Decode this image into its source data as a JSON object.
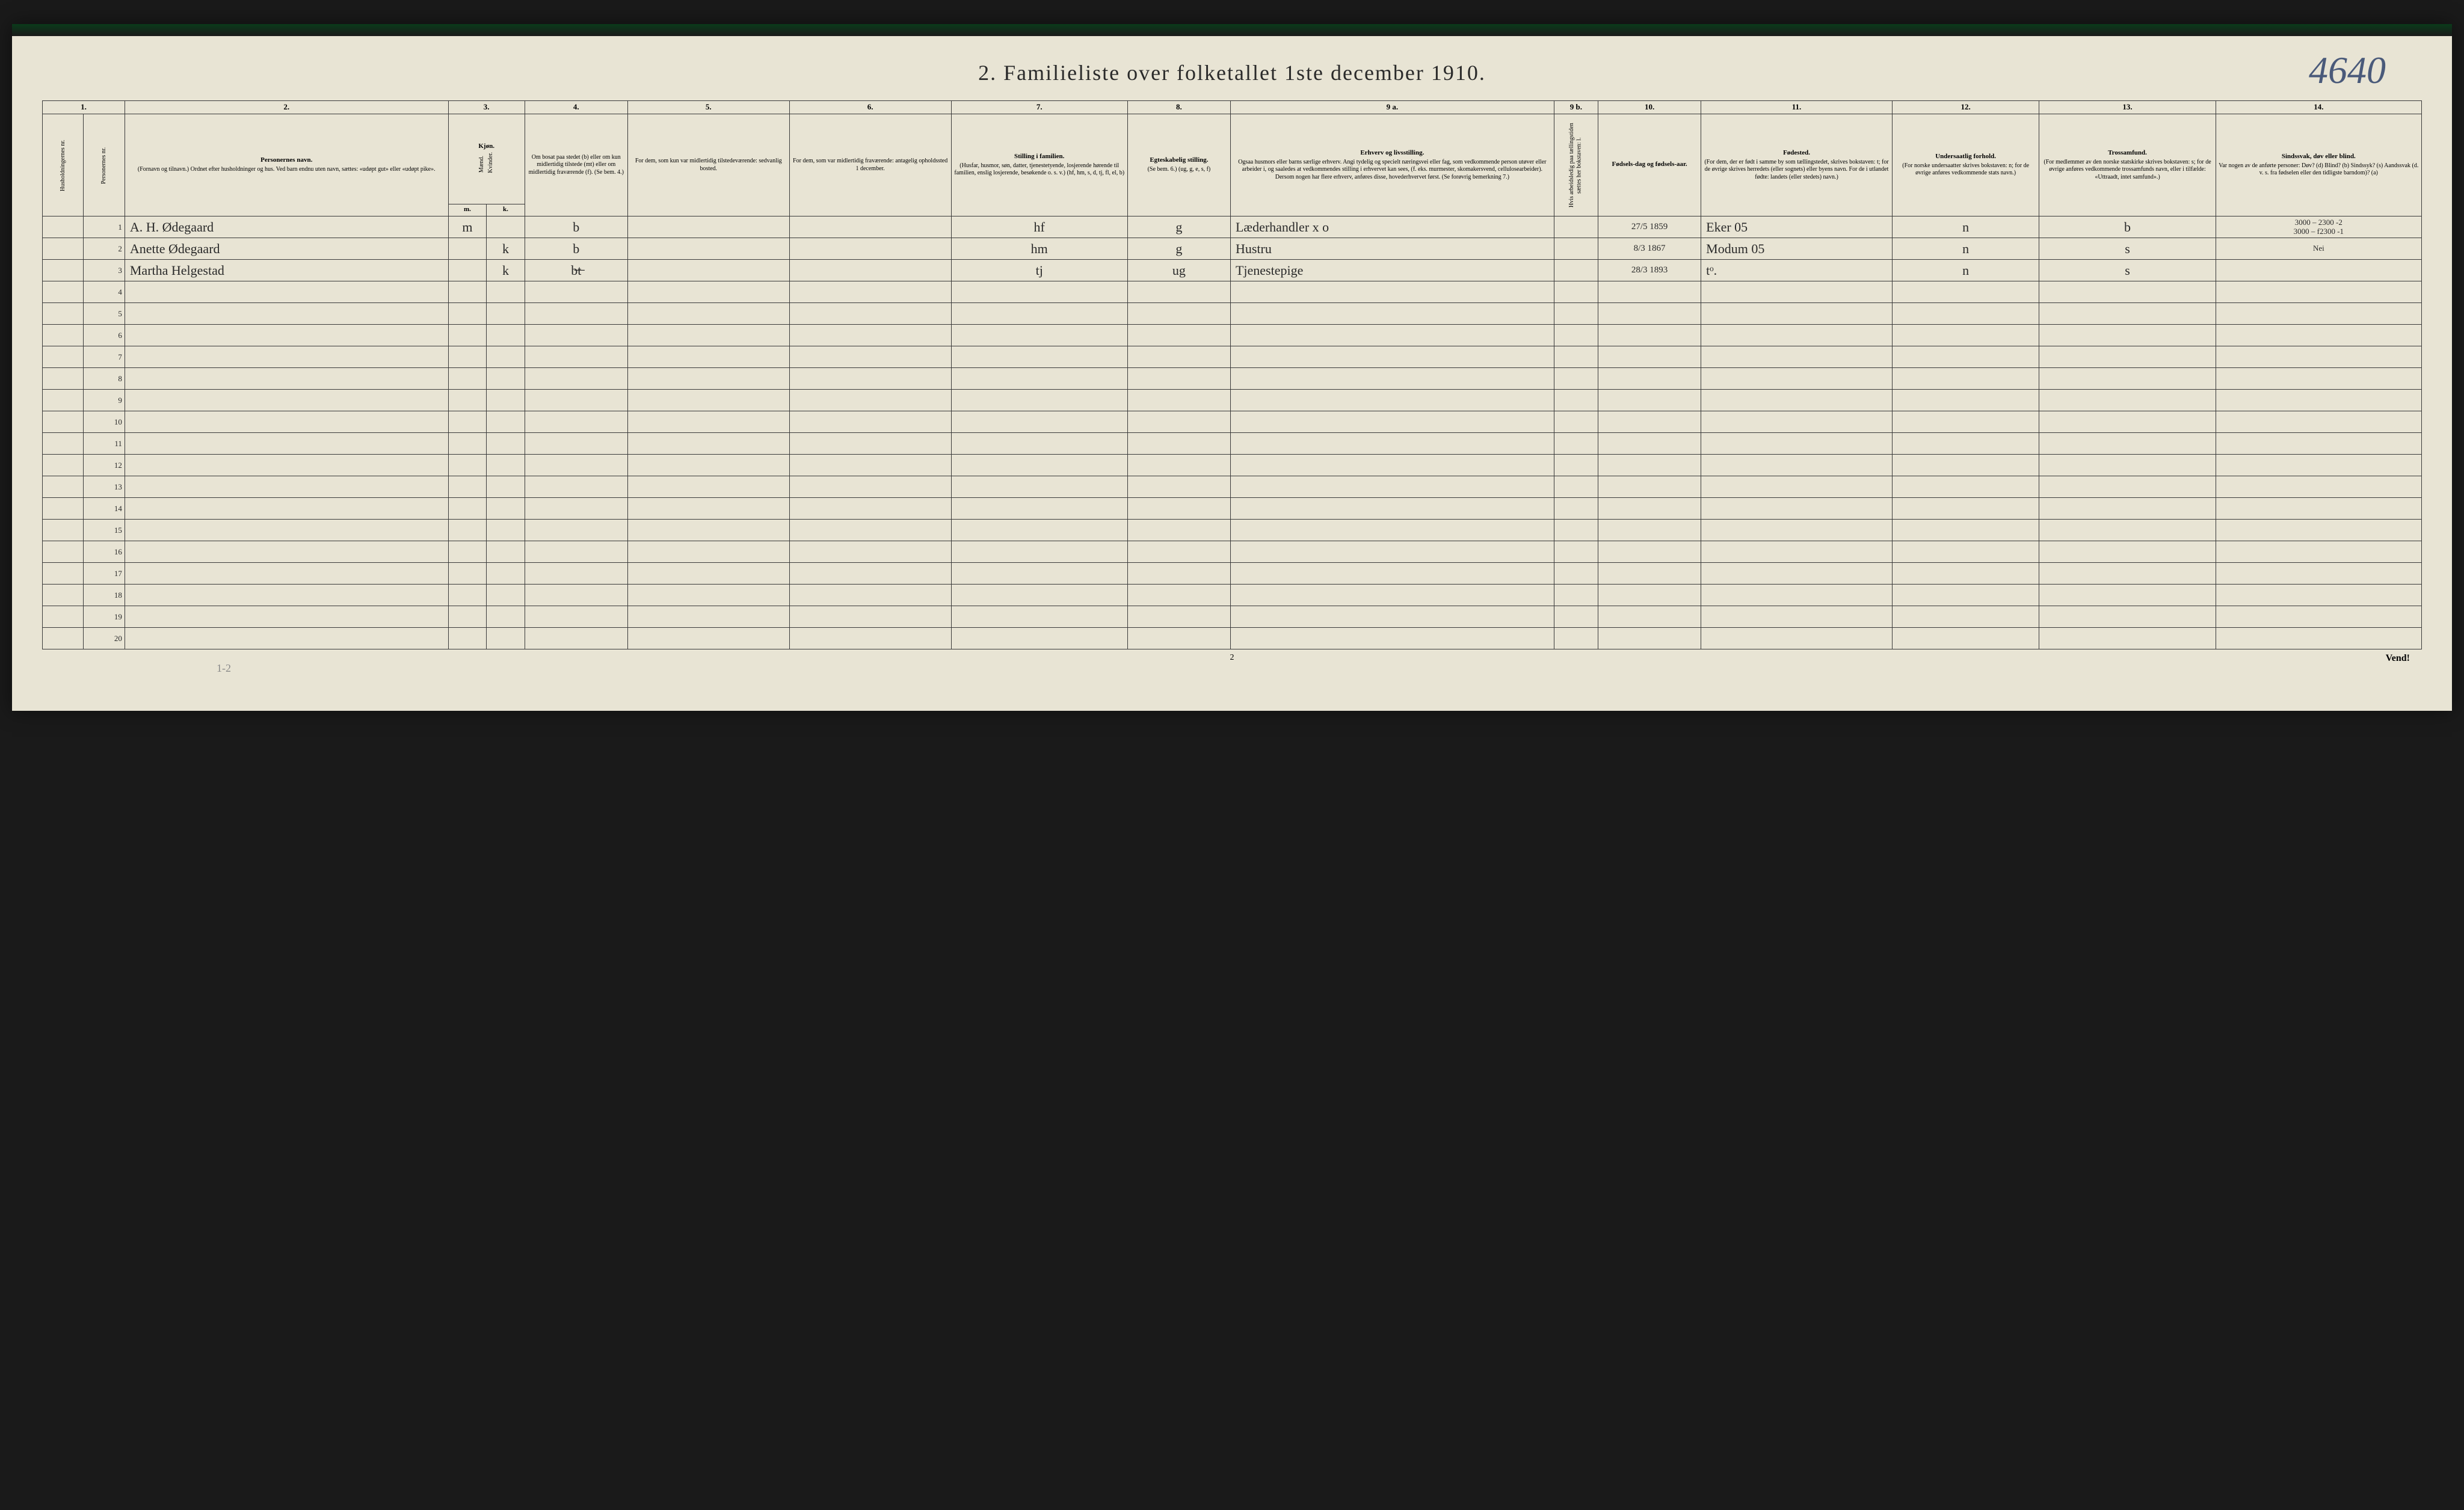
{
  "title": "2.  Familieliste over folketallet 1ste december 1910.",
  "corner_number": "4640",
  "page_number": "2",
  "vend": "Vend!",
  "pencil_below": "1-2",
  "colnums": [
    "1.",
    "2.",
    "3.",
    "4.",
    "5.",
    "6.",
    "7.",
    "8.",
    "9 a.",
    "9 b.",
    "10.",
    "11.",
    "12.",
    "13.",
    "14."
  ],
  "headers": {
    "c1a": "Husholdningernes nr.",
    "c1b": "Personernes nr.",
    "c2_bold": "Personernes navn.",
    "c2": "(Fornavn og tilnavn.)\nOrdnet efter husholdninger og hus.\nVed barn endnu uten navn, sættes: «udøpt gut» eller «udøpt pike».",
    "c3_bold": "Kjøn.",
    "c3m": "Mænd.",
    "c3k": "Kvinder.",
    "c4": "Om bosat paa stedet (b) eller om kun midlertidig tilstede (mt) eller om midlertidig fraværende (f). (Se bem. 4.)",
    "c5": "For dem, som kun var midlertidig tilstedeværende:\n\nsedvanlig bosted.",
    "c6": "For dem, som var midlertidig fraværende:\n\nantagelig opholdssted 1 december.",
    "c7_bold": "Stilling i familien.",
    "c7": "(Husfar, husmor, søn, datter, tjenestetyende, losjerende hørende til familien, enslig losjerende, besøkende o. s. v.)\n(hf, hm, s, d, tj, fl, el, b)",
    "c8_bold": "Egteskabelig stilling.",
    "c8": "(Se bem. 6.)\n(ug, g, e, s, f)",
    "c9a_bold": "Erhverv og livsstilling.",
    "c9a": "Ogsaa husmors eller barns særlige erhverv. Angi tydelig og specielt næringsvei eller fag, som vedkommende person utøver eller arbeider i, og saaledes at vedkommendes stilling i erhvervet kan sees, (f. eks. murmester, skomakersvend, cellulosearbeider). Dersom nogen har flere erhverv, anføres disse, hovederhvervet først. (Se forøvrig bemerkning 7.)",
    "c9b": "Hvis arbeidsledig paa tællingstiden sættes her bokstaven: l.",
    "c10_bold": "Fødsels-dag og fødsels-aar.",
    "c11_bold": "Fødested.",
    "c11": "(For dem, der er født i samme by som tællingstedet, skrives bokstaven: t; for de øvrige skrives herredets (eller sognets) eller byens navn. For de i utlandet fødte: landets (eller stedets) navn.)",
    "c12_bold": "Undersaatlig forhold.",
    "c12": "(For norske undersaatter skrives bokstaven: n; for de øvrige anføres vedkommende stats navn.)",
    "c13_bold": "Trossamfund.",
    "c13": "(For medlemmer av den norske statskirke skrives bokstaven: s; for de øvrige anføres vedkommende trossamfunds navn, eller i tilfælde: «Uttraadt, intet samfund».)",
    "c14_bold": "Sindssvak, døv eller blind.",
    "c14": "Var nogen av de anførte personer:\nDøv? (d)\nBlind? (b)\nSindssyk? (s)\nAandssvak (d. v. s. fra fødselen eller den tidligste barndom)? (a)"
  },
  "subhead": {
    "m": "m.",
    "k": "k."
  },
  "rows": [
    {
      "num": "1",
      "name": "A. H. Ødegaard",
      "m": "m",
      "k": "",
      "res": "b",
      "c5": "",
      "c6": "",
      "famstill": "hf",
      "egte": "g",
      "erhverv": "Læderhandler  x o",
      "c9b": "",
      "fdato": "27/5 1859",
      "fsted": "Eker  05",
      "unders": "n",
      "tros": "b",
      "c14": "3000 – 2300 -2\n3000 – f2300 -1"
    },
    {
      "num": "2",
      "name": "Anette Ødegaard",
      "m": "",
      "k": "k",
      "res": "b",
      "c5": "",
      "c6": "",
      "famstill": "hm",
      "egte": "g",
      "erhverv": "Hustru",
      "c9b": "",
      "fdato": "8/3 1867",
      "fsted": "Modum 05",
      "unders": "n",
      "tros": "s",
      "c14": "Nei"
    },
    {
      "num": "3",
      "name": "Martha Helgestad",
      "m": "",
      "k": "k",
      "res": "b̶t̶",
      "c5": "",
      "c6": "",
      "famstill": "tj",
      "egte": "ug",
      "erhverv": "Tjenestepige",
      "c9b": "",
      "fdato": "28/3 1893",
      "fsted": "tᵒ.",
      "unders": "n",
      "tros": "s",
      "c14": ""
    }
  ],
  "empty_rows": [
    "4",
    "5",
    "6",
    "7",
    "8",
    "9",
    "10",
    "11",
    "12",
    "13",
    "14",
    "15",
    "16",
    "17",
    "18",
    "19",
    "20"
  ]
}
